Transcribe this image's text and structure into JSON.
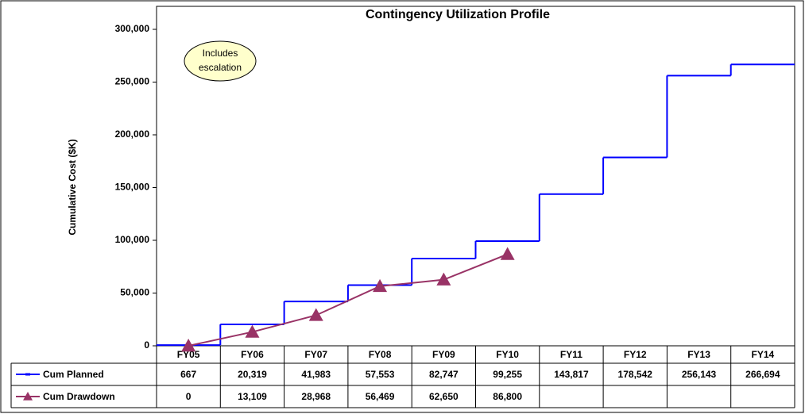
{
  "chart_data": {
    "type": "step-line",
    "title": "Contingency Utilization Profile",
    "ylabel": "Cumulative Cost ($K)",
    "annotation": [
      "Includes",
      "escalation"
    ],
    "categories": [
      "FY05",
      "FY06",
      "FY07",
      "FY08",
      "FY09",
      "FY10",
      "FY11",
      "FY12",
      "FY13",
      "FY14"
    ],
    "series": [
      {
        "name": "Cum Planned",
        "color": "#0000ff",
        "style": "step",
        "values": [
          667,
          20319,
          41983,
          57553,
          82747,
          99255,
          143817,
          178542,
          256143,
          266694
        ],
        "value_labels": [
          "667",
          "20,319",
          "41,983",
          "57,553",
          "82,747",
          "99,255",
          "143,817",
          "178,542",
          "256,143",
          "266,694"
        ]
      },
      {
        "name": "Cum Drawdown",
        "color": "#993366",
        "style": "line-triangle",
        "values": [
          0,
          13109,
          28968,
          56469,
          62650,
          86800,
          null,
          null,
          null,
          null
        ],
        "value_labels": [
          "0",
          "13,109",
          "28,968",
          "56,469",
          "62,650",
          "86,800",
          null,
          null,
          null,
          null
        ]
      }
    ],
    "ylim": [
      0,
      300000
    ],
    "yticks": [
      0,
      {
        "value": 50000,
        "label": "50,000"
      },
      {
        "value": 100000,
        "label": "100,000"
      },
      {
        "value": 150000,
        "label": "150,000"
      },
      {
        "value": 200000,
        "label": "200,000"
      },
      {
        "value": 250000,
        "label": "250,000"
      },
      {
        "value": 300000,
        "label": "300,000"
      }
    ],
    "grid": false
  }
}
